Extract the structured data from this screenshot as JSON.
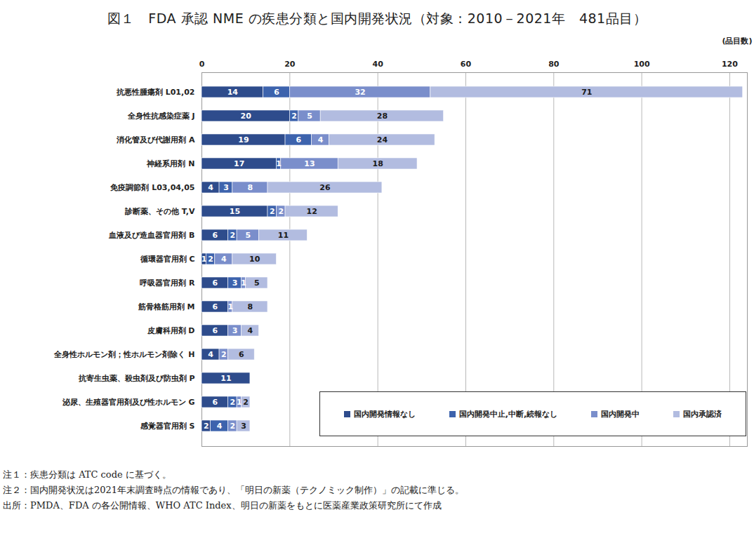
{
  "chart_data": {
    "type": "bar",
    "title": "図１　FDA 承認 NME の疾患分類と国内開発状況（対象：2010－2021年　481品目）",
    "x_label": "(品目数)",
    "orientation": "horizontal",
    "stacked": true,
    "data_labels": true,
    "grid": true,
    "legend": "lower right",
    "xlim": [
      0,
      124
    ],
    "xticks": [
      0,
      20,
      40,
      60,
      80,
      100,
      120
    ],
    "categories": [
      "抗悪性腫瘍剤 L01,02",
      "全身性抗感染症薬 J",
      "消化管及び代謝用剤 A",
      "神経系用剤 N",
      "免疫調節剤 L03,04,05",
      "診断薬、その他 T,V",
      "血液及び造血器官用剤 B",
      "循環器官用剤 C",
      "呼吸器官用剤 R",
      "筋骨格筋用剤 M",
      "皮膚科用剤 D",
      "全身性ホルモン剤；性ホルモン剤除く H",
      "抗寄生虫薬、殺虫剤及び防虫剤 P",
      "泌尿、生殖器官用剤及び性ホルモン G",
      "感覚器官用剤 S"
    ],
    "series": [
      {
        "name": "国内開発情報なし",
        "color": "#2e4c8c",
        "values": [
          14,
          20,
          19,
          17,
          4,
          15,
          6,
          1,
          6,
          6,
          6,
          4,
          11,
          6,
          2
        ]
      },
      {
        "name": "国内開発中止,中断,続報なし",
        "color": "#3d63ad",
        "values": [
          6,
          2,
          6,
          1,
          3,
          2,
          2,
          2,
          3,
          null,
          null,
          null,
          null,
          2,
          4
        ]
      },
      {
        "name": "国内開発中",
        "color": "#7a8ecb",
        "values": [
          32,
          5,
          4,
          13,
          8,
          2,
          5,
          4,
          1,
          1,
          3,
          2,
          null,
          1,
          2
        ]
      },
      {
        "name": "国内承認済",
        "color": "#b2bce0",
        "values": [
          71,
          28,
          24,
          18,
          26,
          12,
          11,
          10,
          5,
          8,
          4,
          6,
          null,
          2,
          3
        ]
      }
    ],
    "annotations": [
      "注１：疾患分類は ATC code に基づく。",
      "注２：国内開発状況は2021年末調査時点の情報であり、「明日の新薬（テクノミック制作）」の記載に準じる。",
      "出所：PMDA、FDA の各公開情報、WHO ATC Index、明日の新薬をもとに医薬産業政策研究所にて作成"
    ]
  }
}
